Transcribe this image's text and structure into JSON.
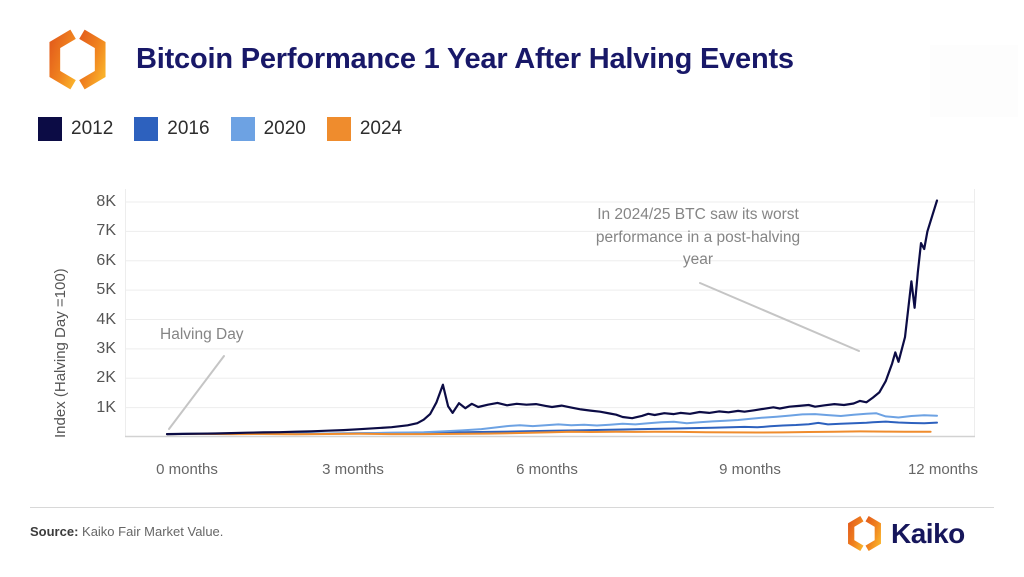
{
  "header": {
    "title": "Bitcoin Performance 1 Year After Halving Events"
  },
  "legend": [
    {
      "label": "2012",
      "color": "#0c0c45"
    },
    {
      "label": "2016",
      "color": "#2d61be"
    },
    {
      "label": "2020",
      "color": "#6da2e3"
    },
    {
      "label": "2024",
      "color": "#ef8c2d"
    }
  ],
  "chart_data": {
    "type": "line",
    "ylabel": "Index (Halving Day =100)",
    "xlabel": "",
    "x_tick_labels": [
      "0 months",
      "3 months",
      "6 months",
      "9 months",
      "12 months"
    ],
    "y_tick_labels": [
      "1K",
      "2K",
      "3K",
      "4K",
      "5K",
      "6K",
      "7K",
      "8K"
    ],
    "y_tick_values": [
      1000,
      2000,
      3000,
      4000,
      5000,
      6000,
      7000,
      8000
    ],
    "x_unit": "months",
    "xlim": [
      0,
      12
    ],
    "ylim": [
      0,
      8300
    ],
    "grid": "horizontal",
    "legend_position": "top-left",
    "annotations": [
      {
        "id": "halving-day",
        "text": "Halving Day"
      },
      {
        "id": "worst-performance",
        "text": "In 2024/25 BTC saw its worst performance in a post-halving year"
      }
    ],
    "series": [
      {
        "name": "2016",
        "color": "#2d61be",
        "points": [
          [
            0,
            100
          ],
          [
            0.5,
            110
          ],
          [
            1,
            118
          ],
          [
            1.5,
            112
          ],
          [
            2,
            122
          ],
          [
            2.5,
            118
          ],
          [
            3,
            128
          ],
          [
            3.5,
            138
          ],
          [
            4,
            148
          ],
          [
            4.5,
            158
          ],
          [
            5,
            172
          ],
          [
            5.5,
            190
          ],
          [
            6,
            212
          ],
          [
            6.5,
            232
          ],
          [
            7,
            252
          ],
          [
            7.5,
            272
          ],
          [
            8,
            292
          ],
          [
            8.5,
            318
          ],
          [
            9,
            345
          ],
          [
            9.2,
            330
          ],
          [
            9.4,
            365
          ],
          [
            9.6,
            390
          ],
          [
            9.8,
            410
          ],
          [
            10,
            435
          ],
          [
            10.15,
            480
          ],
          [
            10.3,
            430
          ],
          [
            10.5,
            450
          ],
          [
            10.7,
            465
          ],
          [
            10.9,
            485
          ],
          [
            11,
            505
          ],
          [
            11.2,
            525
          ],
          [
            11.4,
            495
          ],
          [
            11.6,
            475
          ],
          [
            11.8,
            465
          ],
          [
            12,
            490
          ]
        ]
      },
      {
        "name": "2020",
        "color": "#6da2e3",
        "points": [
          [
            0,
            100
          ],
          [
            0.5,
            108
          ],
          [
            1,
            112
          ],
          [
            1.5,
            104
          ],
          [
            2,
            112
          ],
          [
            2.5,
            120
          ],
          [
            3,
            128
          ],
          [
            3.5,
            142
          ],
          [
            4,
            162
          ],
          [
            4.3,
            190
          ],
          [
            4.6,
            225
          ],
          [
            4.9,
            270
          ],
          [
            5.1,
            320
          ],
          [
            5.3,
            370
          ],
          [
            5.5,
            400
          ],
          [
            5.7,
            370
          ],
          [
            5.9,
            400
          ],
          [
            6.1,
            430
          ],
          [
            6.3,
            400
          ],
          [
            6.5,
            420
          ],
          [
            6.7,
            390
          ],
          [
            6.9,
            420
          ],
          [
            7.1,
            450
          ],
          [
            7.3,
            430
          ],
          [
            7.5,
            465
          ],
          [
            7.7,
            500
          ],
          [
            7.9,
            520
          ],
          [
            8.1,
            470
          ],
          [
            8.3,
            500
          ],
          [
            8.5,
            530
          ],
          [
            8.7,
            555
          ],
          [
            8.9,
            580
          ],
          [
            9.1,
            620
          ],
          [
            9.3,
            660
          ],
          [
            9.5,
            690
          ],
          [
            9.7,
            730
          ],
          [
            9.9,
            770
          ],
          [
            10.1,
            780
          ],
          [
            10.3,
            745
          ],
          [
            10.5,
            715
          ],
          [
            10.7,
            755
          ],
          [
            10.9,
            790
          ],
          [
            11.05,
            810
          ],
          [
            11.2,
            700
          ],
          [
            11.4,
            665
          ],
          [
            11.6,
            715
          ],
          [
            11.8,
            740
          ],
          [
            12,
            725
          ]
        ]
      },
      {
        "name": "2024",
        "color": "#ef8c2d",
        "points": [
          [
            0,
            100
          ],
          [
            0.5,
            104
          ],
          [
            1,
            98
          ],
          [
            1.5,
            103
          ],
          [
            2,
            97
          ],
          [
            2.5,
            102
          ],
          [
            3,
            108
          ],
          [
            3.5,
            100
          ],
          [
            4,
            98
          ],
          [
            4.5,
            105
          ],
          [
            5,
            115
          ],
          [
            5.5,
            135
          ],
          [
            6,
            165
          ],
          [
            6.3,
            180
          ],
          [
            6.6,
            170
          ],
          [
            7,
            180
          ],
          [
            7.3,
            172
          ],
          [
            7.6,
            182
          ],
          [
            8,
            175
          ],
          [
            8.4,
            165
          ],
          [
            8.8,
            158
          ],
          [
            9.2,
            152
          ],
          [
            9.6,
            158
          ],
          [
            10,
            170
          ],
          [
            10.4,
            182
          ],
          [
            10.8,
            190
          ],
          [
            11.2,
            185
          ],
          [
            11.5,
            180
          ],
          [
            11.9,
            178
          ]
        ]
      },
      {
        "name": "2012",
        "color": "#0c0c45",
        "points": [
          [
            0,
            100
          ],
          [
            0.25,
            105
          ],
          [
            0.5,
            112
          ],
          [
            0.75,
            120
          ],
          [
            1,
            132
          ],
          [
            1.25,
            145
          ],
          [
            1.5,
            155
          ],
          [
            1.75,
            165
          ],
          [
            2,
            180
          ],
          [
            2.25,
            195
          ],
          [
            2.5,
            215
          ],
          [
            2.75,
            235
          ],
          [
            3,
            265
          ],
          [
            3.25,
            300
          ],
          [
            3.5,
            335
          ],
          [
            3.75,
            400
          ],
          [
            3.9,
            470
          ],
          [
            4,
            590
          ],
          [
            4.1,
            780
          ],
          [
            4.2,
            1180
          ],
          [
            4.3,
            1780
          ],
          [
            4.38,
            1050
          ],
          [
            4.45,
            820
          ],
          [
            4.55,
            1150
          ],
          [
            4.65,
            980
          ],
          [
            4.75,
            1130
          ],
          [
            4.85,
            1020
          ],
          [
            5,
            1100
          ],
          [
            5.15,
            1160
          ],
          [
            5.3,
            1080
          ],
          [
            5.45,
            1130
          ],
          [
            5.6,
            1100
          ],
          [
            5.75,
            1120
          ],
          [
            5.9,
            1060
          ],
          [
            6,
            1020
          ],
          [
            6.15,
            1070
          ],
          [
            6.3,
            1000
          ],
          [
            6.45,
            940
          ],
          [
            6.6,
            900
          ],
          [
            6.75,
            860
          ],
          [
            6.9,
            800
          ],
          [
            7,
            760
          ],
          [
            7.1,
            680
          ],
          [
            7.25,
            640
          ],
          [
            7.4,
            720
          ],
          [
            7.5,
            790
          ],
          [
            7.6,
            750
          ],
          [
            7.75,
            810
          ],
          [
            7.9,
            780
          ],
          [
            8,
            820
          ],
          [
            8.15,
            790
          ],
          [
            8.3,
            850
          ],
          [
            8.45,
            820
          ],
          [
            8.6,
            870
          ],
          [
            8.75,
            840
          ],
          [
            8.9,
            890
          ],
          [
            9,
            860
          ],
          [
            9.15,
            910
          ],
          [
            9.3,
            960
          ],
          [
            9.45,
            1010
          ],
          [
            9.55,
            970
          ],
          [
            9.7,
            1030
          ],
          [
            9.85,
            1060
          ],
          [
            10,
            1090
          ],
          [
            10.1,
            1030
          ],
          [
            10.25,
            1080
          ],
          [
            10.4,
            1120
          ],
          [
            10.55,
            1090
          ],
          [
            10.7,
            1140
          ],
          [
            10.8,
            1230
          ],
          [
            10.9,
            1180
          ],
          [
            11,
            1340
          ],
          [
            11.1,
            1520
          ],
          [
            11.2,
            1900
          ],
          [
            11.3,
            2500
          ],
          [
            11.35,
            2880
          ],
          [
            11.4,
            2560
          ],
          [
            11.5,
            3400
          ],
          [
            11.55,
            4350
          ],
          [
            11.6,
            5300
          ],
          [
            11.65,
            4400
          ],
          [
            11.7,
            5600
          ],
          [
            11.75,
            6600
          ],
          [
            11.8,
            6400
          ],
          [
            11.85,
            7000
          ],
          [
            11.9,
            7350
          ],
          [
            12,
            8050
          ]
        ]
      }
    ]
  },
  "footer": {
    "source_label": "Source:",
    "source_text": " Kaiko Fair Market Value.",
    "logo_text": "Kaiko"
  }
}
